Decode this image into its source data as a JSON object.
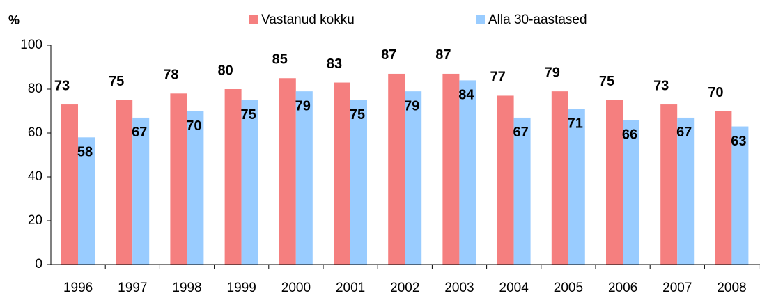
{
  "chart_data": {
    "type": "bar",
    "ylabel": "%",
    "categories": [
      "1996",
      "1997",
      "1998",
      "1999",
      "2000",
      "2001",
      "2002",
      "2003",
      "2004",
      "2005",
      "2006",
      "2007",
      "2008"
    ],
    "series": [
      {
        "name": "Vastanud kokku",
        "color": "#f57f7f",
        "values": [
          73,
          75,
          78,
          80,
          85,
          83,
          87,
          87,
          77,
          79,
          75,
          73,
          70
        ]
      },
      {
        "name": "Alla 30-aastased",
        "color": "#99ccff",
        "values": [
          58,
          67,
          70,
          75,
          79,
          75,
          79,
          84,
          67,
          71,
          66,
          67,
          63
        ]
      }
    ],
    "ylim": [
      0,
      100
    ],
    "yticks": [
      0,
      20,
      40,
      60,
      80,
      100
    ],
    "grid": false,
    "legend": "top"
  }
}
